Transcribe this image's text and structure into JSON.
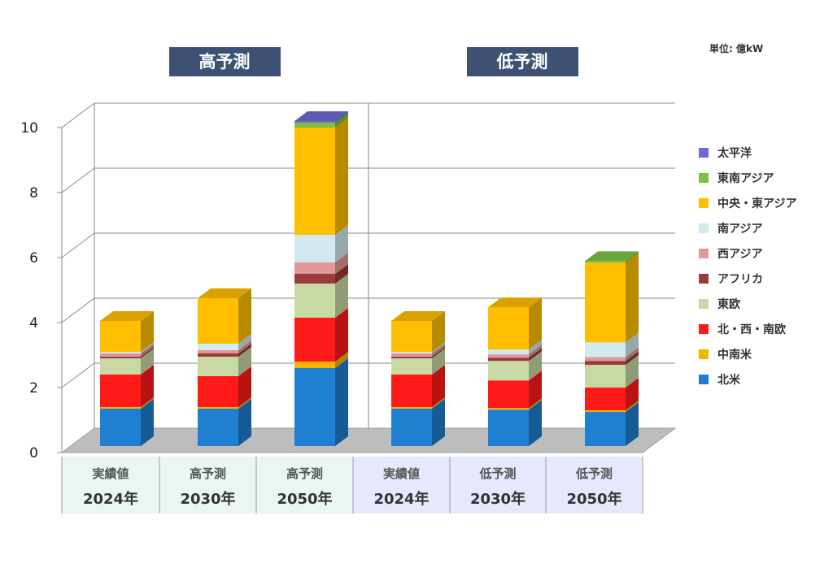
{
  "unit_label": "単位: 億kW",
  "groups": [
    {
      "title": "高予測",
      "color": "#3d5272"
    },
    {
      "title": "低予測",
      "color": "#3d5272"
    }
  ],
  "chart_data": {
    "type": "bar",
    "stacked": true,
    "ylim": [
      0,
      10
    ],
    "yticks": [
      "0",
      "2",
      "4",
      "6",
      "8",
      "10"
    ],
    "grid": true,
    "legend_position": "right",
    "categories": [
      {
        "line1": "実績値",
        "line2": "2024年",
        "group": 0
      },
      {
        "line1": "高予測",
        "line2": "2030年",
        "group": 0
      },
      {
        "line1": "高予測",
        "line2": "2050年",
        "group": 0
      },
      {
        "line1": "実績値",
        "line2": "2024年",
        "group": 1
      },
      {
        "line1": "低予測",
        "line2": "2030年",
        "group": 1
      },
      {
        "line1": "低予測",
        "line2": "2050年",
        "group": 1
      }
    ],
    "series": [
      {
        "name": "北米",
        "color": "#1f7fd0",
        "values": [
          1.15,
          1.15,
          2.4,
          1.15,
          1.12,
          1.05
        ]
      },
      {
        "name": "中南米",
        "color": "#f4b400",
        "values": [
          0.05,
          0.05,
          0.2,
          0.05,
          0.05,
          0.05
        ]
      },
      {
        "name": "北・西・南欧",
        "color": "#ff1a1a",
        "values": [
          1.0,
          0.95,
          1.35,
          1.0,
          0.85,
          0.7
        ]
      },
      {
        "name": "東欧",
        "color": "#c8d9a3",
        "values": [
          0.5,
          0.6,
          1.05,
          0.5,
          0.6,
          0.7
        ]
      },
      {
        "name": "アフリカ",
        "color": "#9b3b3b",
        "values": [
          0.05,
          0.1,
          0.3,
          0.05,
          0.1,
          0.12
        ]
      },
      {
        "name": "西アジア",
        "color": "#e09999",
        "values": [
          0.1,
          0.1,
          0.35,
          0.1,
          0.1,
          0.12
        ]
      },
      {
        "name": "南アジア",
        "color": "#d2e9ee",
        "values": [
          0.05,
          0.2,
          0.85,
          0.05,
          0.15,
          0.45
        ]
      },
      {
        "name": "中央・東アジア",
        "color": "#ffbf00",
        "values": [
          0.95,
          1.4,
          3.3,
          0.95,
          1.3,
          2.45
        ]
      },
      {
        "name": "東南アジア",
        "color": "#7cc242",
        "values": [
          0,
          0,
          0.15,
          0,
          0,
          0.05
        ]
      },
      {
        "name": "太平洋",
        "color": "#6f6bd1",
        "values": [
          0,
          0,
          0.05,
          0,
          0,
          0
        ]
      }
    ]
  }
}
